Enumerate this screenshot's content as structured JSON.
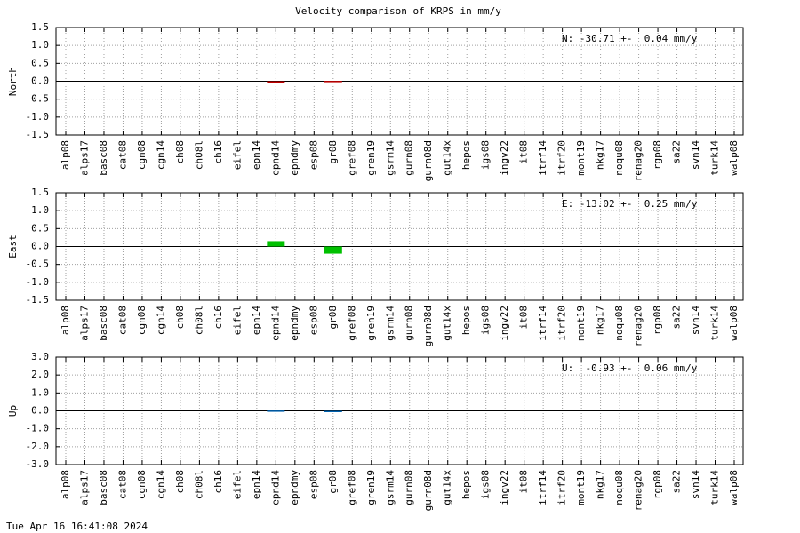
{
  "title": "Velocity comparison of KRPS in mm/y",
  "footer": "Tue Apr 16 16:41:08 2024",
  "chart_data": [
    {
      "type": "bar",
      "ylabel": "North",
      "annotation": "N: -30.71 +-  0.04 mm/y",
      "color": "#c00000",
      "categories": [
        "alp08",
        "alps17",
        "basc08",
        "cat08",
        "cgn08",
        "cgn14",
        "ch08",
        "ch08l",
        "ch16",
        "eifel",
        "epn14",
        "epnd14",
        "epndmy",
        "esp08",
        "gr08",
        "gref08",
        "gren19",
        "gsrm14",
        "gurn08",
        "gurn08d",
        "gut14x",
        "hepos",
        "igs08",
        "ingv22",
        "it08",
        "itrf14",
        "itrf20",
        "mont19",
        "nkg17",
        "noqu08",
        "renag20",
        "rgp08",
        "sa22",
        "svn14",
        "turk14",
        "walp08"
      ],
      "values": [
        null,
        null,
        null,
        null,
        null,
        null,
        null,
        null,
        null,
        null,
        null,
        -0.03,
        null,
        null,
        0.01,
        null,
        null,
        null,
        null,
        null,
        null,
        null,
        null,
        null,
        null,
        null,
        null,
        null,
        null,
        null,
        null,
        null,
        null,
        null,
        null,
        null
      ],
      "ylim": [
        -1.5,
        1.5
      ],
      "yticks": [
        1.5,
        {
          "value": 1.0,
          "label": "1.0"
        },
        0.5,
        {
          "value": 0,
          "label": "0.0"
        },
        -0.5,
        {
          "value": -1.0,
          "label": "-1.0"
        },
        -1.5
      ],
      "grid": true
    },
    {
      "type": "bar",
      "ylabel": "East",
      "annotation": "E: -13.02 +-  0.25 mm/y",
      "color": "#00c000",
      "categories": [
        "alp08",
        "alps17",
        "basc08",
        "cat08",
        "cgn08",
        "cgn14",
        "ch08",
        "ch08l",
        "ch16",
        "eifel",
        "epn14",
        "epnd14",
        "epndmy",
        "esp08",
        "gr08",
        "gref08",
        "gren19",
        "gsrm14",
        "gurn08",
        "gurn08d",
        "gut14x",
        "hepos",
        "igs08",
        "ingv22",
        "it08",
        "itrf14",
        "itrf20",
        "mont19",
        "nkg17",
        "noqu08",
        "renag20",
        "rgp08",
        "sa22",
        "svn14",
        "turk14",
        "walp08"
      ],
      "values": [
        null,
        null,
        null,
        null,
        null,
        null,
        null,
        null,
        null,
        null,
        null,
        0.15,
        null,
        null,
        -0.2,
        null,
        null,
        null,
        null,
        null,
        null,
        null,
        null,
        null,
        null,
        null,
        null,
        null,
        null,
        null,
        null,
        null,
        null,
        null,
        null,
        null
      ],
      "ylim": [
        -1.5,
        1.5
      ],
      "yticks": [
        1.5,
        {
          "value": 1.0,
          "label": "1.0"
        },
        0.5,
        {
          "value": 0,
          "label": "0.0"
        },
        -0.5,
        {
          "value": -1.0,
          "label": "-1.0"
        },
        -1.5
      ],
      "grid": true
    },
    {
      "type": "bar",
      "ylabel": "Up",
      "annotation": "U:  -0.93 +-  0.06 mm/y",
      "color": "#0060ad",
      "categories": [
        "alp08",
        "alps17",
        "basc08",
        "cat08",
        "cgn08",
        "cgn14",
        "ch08",
        "ch08l",
        "ch16",
        "eifel",
        "epn14",
        "epnd14",
        "epndmy",
        "esp08",
        "gr08",
        "gref08",
        "gren19",
        "gsrm14",
        "gurn08",
        "gurn08d",
        "gut14x",
        "hepos",
        "igs08",
        "ingv22",
        "it08",
        "itrf14",
        "itrf20",
        "mont19",
        "nkg17",
        "noqu08",
        "renag20",
        "rgp08",
        "sa22",
        "svn14",
        "turk14",
        "walp08"
      ],
      "values": [
        null,
        null,
        null,
        null,
        null,
        null,
        null,
        null,
        null,
        null,
        null,
        0.02,
        null,
        null,
        -0.03,
        null,
        null,
        null,
        null,
        null,
        null,
        null,
        null,
        null,
        null,
        null,
        null,
        null,
        null,
        null,
        null,
        null,
        null,
        null,
        null,
        null
      ],
      "ylim": [
        -3,
        3
      ],
      "yticks": [
        {
          "value": 3,
          "label": "3.0"
        },
        {
          "value": 2,
          "label": "2.0"
        },
        {
          "value": 1,
          "label": "1.0"
        },
        {
          "value": 0,
          "label": "0.0"
        },
        {
          "value": -1,
          "label": "-1.0"
        },
        {
          "value": -2,
          "label": "-2.0"
        },
        {
          "value": -3,
          "label": "-3.0"
        }
      ],
      "grid": true
    }
  ]
}
